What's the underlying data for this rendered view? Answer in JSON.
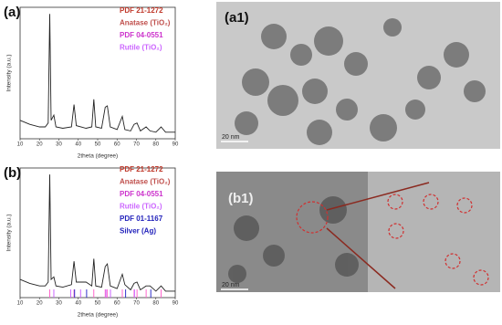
{
  "chart_data": [
    {
      "type": "line",
      "panel": "(a)",
      "xlabel": "2theta (degree)",
      "ylabel": "Intensity (a.u.)",
      "x": [
        10,
        15,
        20,
        23,
        24.5,
        25.3,
        26,
        27.4,
        28.5,
        32,
        36.5,
        37.8,
        39,
        44,
        47,
        48,
        49,
        52,
        53.9,
        55,
        56.5,
        60,
        62.7,
        64,
        67,
        68.8,
        70.3,
        72,
        75,
        77,
        80,
        82.7,
        85,
        90
      ],
      "values": [
        14,
        11,
        9,
        9,
        12,
        95,
        14,
        18,
        9,
        8,
        9,
        26,
        10,
        8,
        9,
        30,
        9,
        8,
        24,
        25,
        9,
        7,
        17,
        7,
        6,
        11,
        12,
        6,
        9,
        6,
        5,
        9,
        5,
        5
      ],
      "color": "#222222",
      "xlim": [
        10,
        90
      ],
      "ylim": [
        0,
        100
      ],
      "xticks": [
        10,
        20,
        30,
        40,
        50,
        60,
        70,
        80,
        90
      ],
      "legend": [
        {
          "text": "PDF 21-1272",
          "color": "#c0392b"
        },
        {
          "text": "Anatase (TiO₂)",
          "color": "#c0504d"
        },
        {
          "text": "PDF 04-0551",
          "color": "#cc33cc"
        },
        {
          "text": "Rutile (TiO₂)",
          "color": "#cc66ff"
        }
      ]
    },
    {
      "type": "line",
      "panel": "(b)",
      "xlabel": "2theta (degree)",
      "ylabel": "Intensity (a.u.)",
      "x": [
        10,
        15,
        20,
        23,
        24.5,
        25.3,
        26,
        27.4,
        28.5,
        32,
        36.5,
        37.8,
        39,
        44,
        47,
        48,
        49,
        52,
        53.9,
        55,
        56.5,
        60,
        62.7,
        64,
        67,
        68.8,
        70.3,
        72,
        75,
        77,
        80,
        82.7,
        85,
        90
      ],
      "values": [
        14,
        11,
        9,
        9,
        12,
        95,
        14,
        16,
        9,
        8,
        10,
        28,
        12,
        12,
        9,
        30,
        9,
        8,
        24,
        26,
        9,
        7,
        18,
        10,
        6,
        11,
        12,
        6,
        9,
        9,
        5,
        9,
        5,
        5
      ],
      "color": "#222222",
      "xlim": [
        10,
        90
      ],
      "ylim": [
        0,
        100
      ],
      "xticks": [
        10,
        20,
        30,
        40,
        50,
        60,
        70,
        80,
        90
      ],
      "references": [
        {
          "color": "#ff66cc",
          "x": [
            25.3,
            37.8,
            48,
            53.9,
            55,
            62.7,
            68.8,
            70.3,
            75,
            82.7
          ]
        },
        {
          "color": "#cc66ff",
          "x": [
            27.4,
            36.1,
            41.2,
            54.3,
            56.6,
            69
          ]
        },
        {
          "color": "#3333cc",
          "x": [
            38.1,
            44.3,
            64.4,
            77.4
          ]
        }
      ],
      "legend": [
        {
          "text": "PDF 21-1272",
          "color": "#c0392b"
        },
        {
          "text": "Anatase (TiO₂)",
          "color": "#c0504d"
        },
        {
          "text": "PDF 04-0551",
          "color": "#cc33cc"
        },
        {
          "text": "Rutile (TiO₂)",
          "color": "#cc66ff"
        },
        {
          "text": "PDF 01-1167",
          "color": "#2222bb"
        },
        {
          "text": "Silver (Ag)",
          "color": "#2222bb"
        }
      ]
    }
  ],
  "images": [
    {
      "label": "(a1)",
      "scale_bar": "20 nm"
    },
    {
      "label": "(b1)",
      "scale_bar": "20 nm"
    }
  ]
}
